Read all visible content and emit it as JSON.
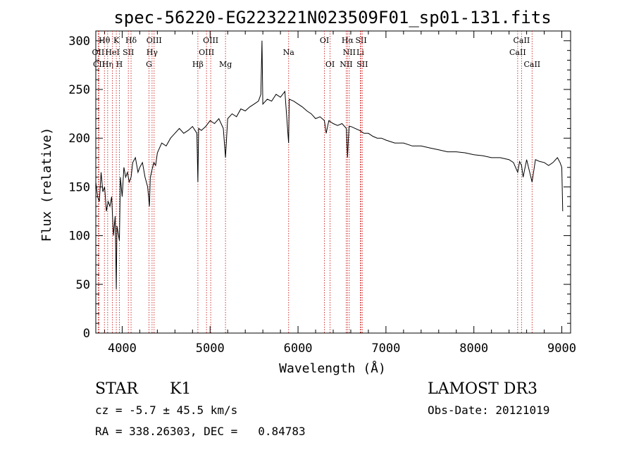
{
  "chart_data": {
    "type": "line",
    "title": "spec-56220-EG223221N023509F01_sp01-131.fits",
    "xlabel": "Wavelength (Å)",
    "ylabel": "Flux (relative)",
    "xlim": [
      3700,
      9100
    ],
    "ylim": [
      0,
      310
    ],
    "xticks": [
      4000,
      5000,
      6000,
      7000,
      8000,
      9000
    ],
    "xtick_labels": [
      "4000",
      "5000",
      "6000",
      "7000",
      "8000",
      "9000"
    ],
    "yticks": [
      0,
      50,
      100,
      150,
      200,
      250,
      300
    ],
    "ytick_labels": [
      "0",
      "50",
      "100",
      "150",
      "200",
      "250",
      "300"
    ],
    "grid": false,
    "spectrum": {
      "name": "flux",
      "x": [
        3700,
        3720,
        3740,
        3760,
        3780,
        3800,
        3820,
        3840,
        3860,
        3880,
        3900,
        3920,
        3933,
        3940,
        3968,
        3980,
        4000,
        4020,
        4040,
        4060,
        4080,
        4101,
        4120,
        4150,
        4180,
        4200,
        4230,
        4260,
        4290,
        4310,
        4320,
        4340,
        4360,
        4380,
        4400,
        4450,
        4500,
        4550,
        4600,
        4650,
        4700,
        4750,
        4800,
        4850,
        4861,
        4870,
        4900,
        4950,
        5000,
        5050,
        5100,
        5150,
        5175,
        5200,
        5250,
        5300,
        5350,
        5400,
        5450,
        5500,
        5550,
        5577,
        5590,
        5600,
        5650,
        5700,
        5750,
        5800,
        5850,
        5893,
        5900,
        5950,
        6000,
        6050,
        6100,
        6150,
        6200,
        6250,
        6300,
        6320,
        6350,
        6400,
        6450,
        6500,
        6550,
        6563,
        6580,
        6600,
        6650,
        6700,
        6750,
        6800,
        6850,
        6900,
        6950,
        7000,
        7100,
        7200,
        7300,
        7400,
        7500,
        7600,
        7700,
        7800,
        7900,
        8000,
        8100,
        8200,
        8300,
        8400,
        8450,
        8498,
        8520,
        8542,
        8560,
        8600,
        8662,
        8700,
        8750,
        8800,
        8850,
        8900,
        8950,
        8980,
        9000,
        9010
      ],
      "y": [
        155,
        140,
        135,
        165,
        145,
        150,
        125,
        135,
        130,
        140,
        100,
        120,
        45,
        110,
        95,
        160,
        140,
        170,
        160,
        165,
        155,
        160,
        175,
        180,
        165,
        170,
        175,
        160,
        150,
        130,
        160,
        168,
        175,
        172,
        185,
        195,
        192,
        200,
        205,
        210,
        205,
        208,
        212,
        205,
        155,
        210,
        208,
        212,
        218,
        215,
        220,
        210,
        180,
        220,
        225,
        222,
        230,
        228,
        232,
        235,
        238,
        245,
        300,
        235,
        240,
        238,
        245,
        242,
        248,
        195,
        240,
        238,
        235,
        232,
        228,
        225,
        220,
        222,
        218,
        205,
        218,
        215,
        213,
        215,
        210,
        180,
        212,
        212,
        210,
        208,
        205,
        205,
        202,
        200,
        200,
        198,
        195,
        195,
        192,
        192,
        190,
        188,
        186,
        186,
        185,
        183,
        182,
        180,
        180,
        178,
        175,
        165,
        176,
        172,
        160,
        178,
        155,
        178,
        176,
        175,
        172,
        175,
        180,
        175,
        170,
        125
      ]
    },
    "line_markers": [
      {
        "label": "Hθ",
        "x": 3798,
        "row": 1
      },
      {
        "label": "OII",
        "x": 3727,
        "row": 2
      },
      {
        "label": "CII",
        "x": 3736,
        "row": 3
      },
      {
        "label": "Hη",
        "x": 3835,
        "row": 3
      },
      {
        "label": "K",
        "x": 3933,
        "row": 1
      },
      {
        "label": "HeI",
        "x": 3889,
        "row": 2
      },
      {
        "label": "SII",
        "x": 4070,
        "row": 2
      },
      {
        "label": "H",
        "x": 3968,
        "row": 3
      },
      {
        "label": "Hδ",
        "x": 4101,
        "row": 1
      },
      {
        "label": "OIII",
        "x": 4363,
        "row": 1
      },
      {
        "label": "Hγ",
        "x": 4340,
        "row": 2
      },
      {
        "label": "G",
        "x": 4305,
        "row": 3
      },
      {
        "label": "Hβ",
        "x": 4861,
        "row": 3
      },
      {
        "label": "OIII",
        "x": 5007,
        "row": 1
      },
      {
        "label": "OIII",
        "x": 4959,
        "row": 2
      },
      {
        "label": "Mg",
        "x": 5175,
        "row": 3
      },
      {
        "label": "Na",
        "x": 5893,
        "row": 2
      },
      {
        "label": "OI",
        "x": 6300,
        "row": 1
      },
      {
        "label": "OI",
        "x": 6364,
        "row": 3
      },
      {
        "label": "Hα",
        "x": 6563,
        "row": 1
      },
      {
        "label": "SII",
        "x": 6717,
        "row": 1
      },
      {
        "label": "NII",
        "x": 6583,
        "row": 2
      },
      {
        "label": "Li",
        "x": 6708,
        "row": 2
      },
      {
        "label": "NII",
        "x": 6548,
        "row": 3
      },
      {
        "label": "SII",
        "x": 6731,
        "row": 3
      },
      {
        "label": "CaII",
        "x": 8542,
        "row": 1
      },
      {
        "label": "CaII",
        "x": 8498,
        "row": 2
      },
      {
        "label": "CaII",
        "x": 8662,
        "row": 3
      }
    ]
  },
  "info": {
    "class_label": "STAR",
    "subclass": "K1",
    "survey": "LAMOST DR3",
    "redshift_text": "cz = -5.7 ± 45.5 km/s",
    "obs_date_text": "Obs-Date: 20121019",
    "coords_text": "RA = 338.26303, DEC =   0.84783"
  }
}
